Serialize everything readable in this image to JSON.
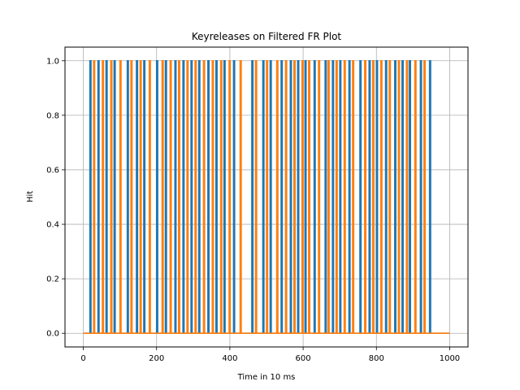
{
  "chart_data": {
    "type": "line",
    "title": "Keyreleases on Filtered FR Plot",
    "xlabel": "Time in 10 ms",
    "ylabel": "Hit",
    "xlim": [
      -50,
      1050
    ],
    "ylim": [
      -0.05,
      1.05
    ],
    "x_ticks": [
      0,
      200,
      400,
      600,
      800,
      1000
    ],
    "y_ticks": [
      0.0,
      0.2,
      0.4,
      0.6,
      0.8,
      1.0
    ],
    "x_tick_labels": [
      "0",
      "200",
      "400",
      "600",
      "800",
      "1000"
    ],
    "y_tick_labels": [
      "0.0",
      "0.2",
      "0.4",
      "0.6",
      "0.8",
      "1.0"
    ],
    "grid": true,
    "series": [
      {
        "color": "#1f77b4",
        "x_range": [
          0,
          1000
        ],
        "pulse_width": 3,
        "pulses": [
          18,
          40,
          62,
          84,
          120,
          145,
          165,
          200,
          224,
          250,
          272,
          294,
          315,
          340,
          362,
          384,
          410,
          460,
          490,
          510,
          540,
          565,
          585,
          605,
          630,
          660,
          680,
          700,
          725,
          755,
          780,
          800,
          825,
          850,
          870,
          890,
          920,
          945
        ]
      },
      {
        "color": "#ff7f0e",
        "x_range": [
          0,
          1000
        ],
        "pulse_width": 3,
        "pulses": [
          28,
          52,
          75,
          100,
          130,
          155,
          180,
          215,
          237,
          260,
          283,
          305,
          328,
          352,
          375,
          398,
          428,
          470,
          500,
          528,
          552,
          575,
          597,
          615,
          642,
          668,
          690,
          712,
          735,
          768,
          790,
          812,
          835,
          860,
          882,
          905,
          930
        ]
      }
    ]
  }
}
